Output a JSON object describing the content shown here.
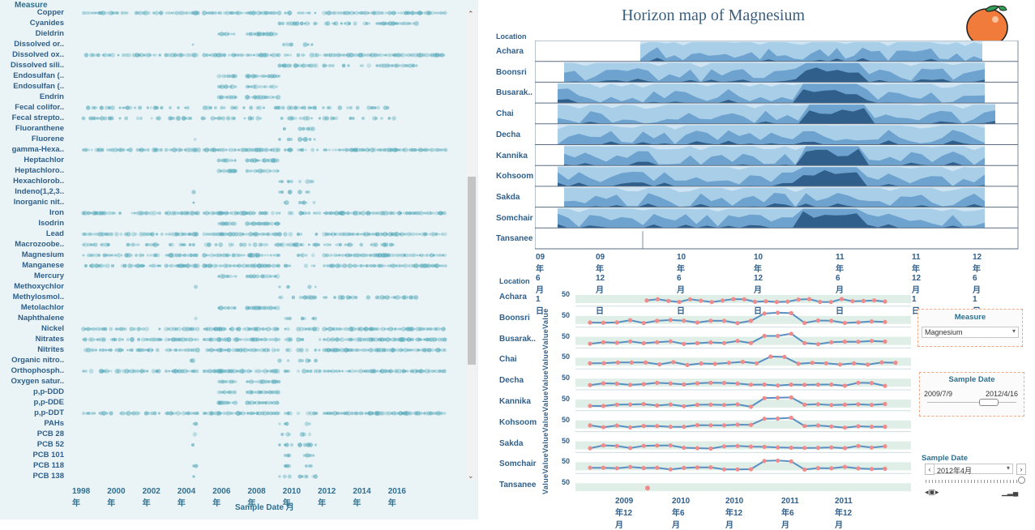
{
  "left_panel": {
    "measure_header": "Measure",
    "axis_title": "Sample Date 月",
    "years": [
      "1998年",
      "2000年",
      "2002年",
      "2004年",
      "2006年",
      "2008年",
      "2010年",
      "2012年",
      "2014年",
      "2016年"
    ],
    "measures": [
      {
        "label": "Copper",
        "style": "dense"
      },
      {
        "label": "Cyanides",
        "style": "late"
      },
      {
        "label": "Dieldrin",
        "style": "mid"
      },
      {
        "label": "Dissolved or..",
        "style": "dot"
      },
      {
        "label": "Dissolved ox..",
        "style": "dense"
      },
      {
        "label": "Dissolved sili..",
        "style": "late"
      },
      {
        "label": "Endosulfan (..",
        "style": "mid"
      },
      {
        "label": "Endosulfan (..",
        "style": "mid"
      },
      {
        "label": "Endrin",
        "style": "mid"
      },
      {
        "label": "Fecal colifor..",
        "style": "sparse"
      },
      {
        "label": "Fecal strepto..",
        "style": "sparse"
      },
      {
        "label": "Fluoranthene",
        "style": "dot"
      },
      {
        "label": "Fluorene",
        "style": "dot"
      },
      {
        "label": "gamma-Hexa..",
        "style": "dense"
      },
      {
        "label": "Heptachlor",
        "style": "mid"
      },
      {
        "label": "Heptachloro..",
        "style": "mid"
      },
      {
        "label": "Hexachlorob..",
        "style": "dot"
      },
      {
        "label": "Indeno(1,2,3..",
        "style": "dot"
      },
      {
        "label": "Inorganic nit..",
        "style": "dot"
      },
      {
        "label": "Iron",
        "style": "dense"
      },
      {
        "label": "Isodrin",
        "style": "mid"
      },
      {
        "label": "Lead",
        "style": "dense"
      },
      {
        "label": "Macrozoobe..",
        "style": "sparse"
      },
      {
        "label": "Magnesium",
        "style": "dense"
      },
      {
        "label": "Manganese",
        "style": "dense"
      },
      {
        "label": "Mercury",
        "style": "mid"
      },
      {
        "label": "Methoxychlor",
        "style": "dot"
      },
      {
        "label": "Methylosmol..",
        "style": "late"
      },
      {
        "label": "Metolachlor",
        "style": "mid"
      },
      {
        "label": "Naphthalene",
        "style": "dot"
      },
      {
        "label": "Nickel",
        "style": "dense"
      },
      {
        "label": "Nitrates",
        "style": "dense"
      },
      {
        "label": "Nitrites",
        "style": "dense"
      },
      {
        "label": "Organic nitro..",
        "style": "dot"
      },
      {
        "label": "Orthophosph..",
        "style": "dense"
      },
      {
        "label": "Oxygen satur..",
        "style": "mid"
      },
      {
        "label": "p,p-DDD",
        "style": "mid"
      },
      {
        "label": "p,p-DDE",
        "style": "mid"
      },
      {
        "label": "p,p-DDT",
        "style": "dense"
      },
      {
        "label": "PAHs",
        "style": "dot"
      },
      {
        "label": "PCB 28",
        "style": "dot"
      },
      {
        "label": "PCB 52",
        "style": "dot"
      },
      {
        "label": "PCB 101",
        "style": "dot"
      },
      {
        "label": "PCB 118",
        "style": "dot"
      },
      {
        "label": "PCB 138",
        "style": "dot"
      }
    ]
  },
  "horizon": {
    "title": "Horizon map of Magnesium",
    "location_header": "Location",
    "locations": [
      "Achara",
      "Boonsri",
      "Busarak..",
      "Chai",
      "Decha",
      "Kannika",
      "Kohsoom",
      "Sakda",
      "Somchair",
      "Tansanee"
    ],
    "x_ticks": [
      "09年6月1日",
      "09年12月1日",
      "10年6月1日",
      "10年12月1日",
      "11年6月1日",
      "11年12月1日",
      "12年6月1日"
    ]
  },
  "line_panel": {
    "location_header": "Location",
    "value_axis": "ValueValueValueValueValueValueValueValueValue",
    "tick_value": "50",
    "x_ticks": [
      "2009年12月",
      "2010年6月",
      "2010年12月",
      "2011年6月",
      "2011年12月"
    ]
  },
  "controls": {
    "measure": {
      "title": "Measure",
      "selected": "Magnesium"
    },
    "sample_date": {
      "title": "Sample Date",
      "start": "2009/7/9",
      "end": "2012/4/16"
    },
    "page_control": {
      "title": "Sample Date",
      "selected": "2012年4月"
    }
  },
  "colors": {
    "accent": "#4aa3b5",
    "horizon_light": "#a9cfe8",
    "horizon_dark": "#2f5f8a",
    "line": "#5a8fc1",
    "point": "#f08b8b",
    "band": "#dfeee6"
  }
}
